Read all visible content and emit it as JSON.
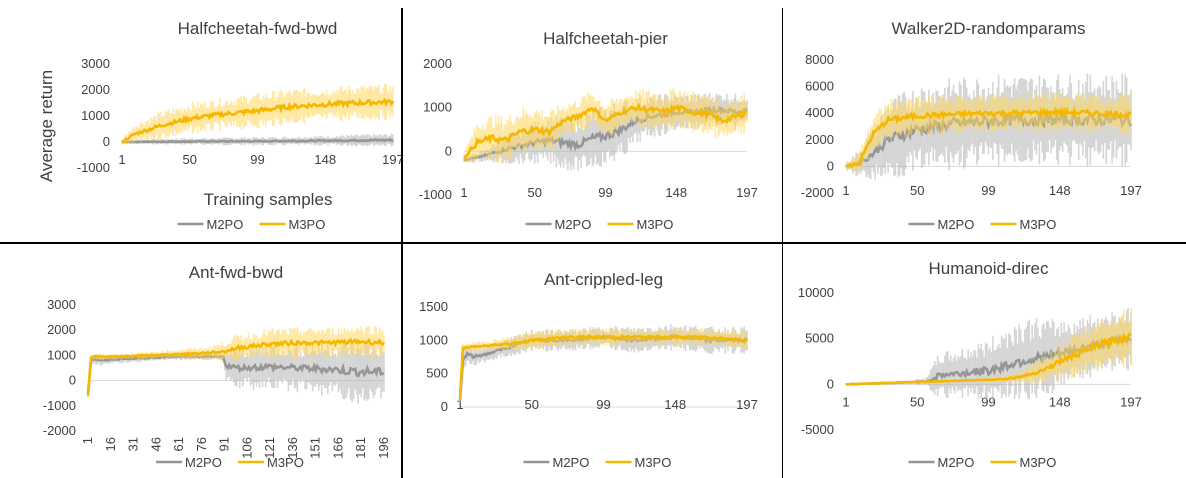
{
  "figure": {
    "colors": {
      "M2PO": "#969696",
      "M3PO": "#f5b800",
      "M2PO_band": "#b4b4b4",
      "M3PO_band": "#ffd75a"
    },
    "legend": [
      "M2PO",
      "M3PO"
    ]
  },
  "chart_data": [
    {
      "type": "line",
      "title": "Halfcheetah-fwd-bwd",
      "ylabel": "Average return",
      "xlabel": "Training samples",
      "ylim": [
        -1000,
        3000
      ],
      "yticks": [
        -1000,
        0,
        1000,
        2000,
        3000
      ],
      "xlim": [
        1,
        197
      ],
      "xticks": [
        "1",
        "50",
        "99",
        "148",
        "197"
      ],
      "series": [
        {
          "name": "M2PO",
          "x": [
            1,
            20,
            50,
            99,
            148,
            197
          ],
          "y": [
            0,
            10,
            20,
            30,
            50,
            80
          ],
          "band": [
            60,
            80,
            100,
            120,
            150,
            180
          ]
        },
        {
          "name": "M3PO",
          "x": [
            1,
            10,
            30,
            50,
            70,
            99,
            120,
            148,
            170,
            197
          ],
          "y": [
            0,
            300,
            650,
            900,
            1050,
            1200,
            1350,
            1450,
            1500,
            1550
          ],
          "band": [
            100,
            300,
            400,
            450,
            450,
            500,
            500,
            500,
            500,
            500
          ]
        }
      ]
    },
    {
      "type": "line",
      "title": "Halfcheetah-pier",
      "ylim": [
        -1000,
        2000
      ],
      "yticks": [
        -1000,
        0,
        1000,
        2000
      ],
      "xlim": [
        1,
        197
      ],
      "xticks": [
        "1",
        "50",
        "99",
        "148",
        "197"
      ],
      "series": [
        {
          "name": "M2PO",
          "x": [
            1,
            15,
            30,
            50,
            60,
            70,
            80,
            90,
            99,
            110,
            120,
            130,
            140,
            148,
            160,
            170,
            180,
            190,
            197
          ],
          "y": [
            -200,
            -100,
            50,
            200,
            250,
            200,
            150,
            300,
            350,
            500,
            700,
            800,
            850,
            900,
            900,
            950,
            950,
            900,
            950
          ],
          "band": [
            50,
            100,
            250,
            350,
            400,
            450,
            450,
            500,
            500,
            500,
            400,
            350,
            350,
            300,
            300,
            300,
            300,
            300,
            300
          ]
        },
        {
          "name": "M3PO",
          "x": [
            1,
            10,
            20,
            30,
            40,
            50,
            60,
            70,
            80,
            90,
            99,
            110,
            120,
            130,
            140,
            148,
            160,
            170,
            180,
            190,
            197
          ],
          "y": [
            -150,
            200,
            300,
            250,
            450,
            500,
            450,
            700,
            800,
            1000,
            700,
            900,
            1000,
            950,
            900,
            1000,
            900,
            850,
            700,
            800,
            900
          ],
          "band": [
            100,
            350,
            400,
            400,
            400,
            400,
            350,
            300,
            300,
            300,
            300,
            300,
            300,
            350,
            350,
            350,
            350,
            350,
            350,
            350,
            350
          ]
        }
      ]
    },
    {
      "type": "line",
      "title": "Walker2D-randomparams",
      "ylim": [
        -2000,
        8000
      ],
      "yticks": [
        -2000,
        0,
        2000,
        4000,
        6000,
        8000
      ],
      "xlim": [
        1,
        197
      ],
      "xticks": [
        "1",
        "50",
        "99",
        "148",
        "197"
      ],
      "series": [
        {
          "name": "M2PO",
          "x": [
            1,
            10,
            20,
            30,
            50,
            75,
            99,
            120,
            148,
            170,
            197
          ],
          "y": [
            0,
            200,
            1000,
            2000,
            2800,
            3200,
            3400,
            3500,
            3500,
            3500,
            3500
          ],
          "band": [
            200,
            800,
            1500,
            2200,
            2400,
            2500,
            2500,
            2500,
            2500,
            2500,
            2500
          ]
        },
        {
          "name": "M3PO",
          "x": [
            1,
            10,
            20,
            30,
            50,
            75,
            99,
            120,
            148,
            170,
            197
          ],
          "y": [
            0,
            300,
            2500,
            3500,
            3800,
            3900,
            4000,
            4000,
            4100,
            4000,
            3900
          ],
          "band": [
            200,
            600,
            1000,
            1100,
            1100,
            1100,
            1100,
            1100,
            1100,
            1100,
            1100
          ]
        }
      ]
    },
    {
      "type": "line",
      "title": "Ant-fwd-bwd",
      "ylim": [
        -2000,
        3000
      ],
      "yticks": [
        -2000,
        -1000,
        0,
        1000,
        2000,
        3000
      ],
      "xlim": [
        1,
        196
      ],
      "xticks": [
        "1",
        "16",
        "31",
        "46",
        "61",
        "76",
        "91",
        "106",
        "121",
        "136",
        "151",
        "166",
        "181",
        "196"
      ],
      "x_tick_rotation": -90,
      "series": [
        {
          "name": "M2PO",
          "x": [
            1,
            3,
            5,
            10,
            20,
            40,
            60,
            80,
            90,
            92,
            100,
            120,
            140,
            160,
            180,
            196
          ],
          "y": [
            -500,
            800,
            850,
            800,
            850,
            900,
            950,
            950,
            950,
            600,
            500,
            550,
            500,
            450,
            350,
            350
          ],
          "band": [
            100,
            150,
            150,
            150,
            150,
            100,
            100,
            100,
            100,
            500,
            600,
            700,
            700,
            800,
            1000,
            800
          ]
        },
        {
          "name": "M3PO",
          "x": [
            1,
            3,
            5,
            10,
            20,
            40,
            60,
            80,
            90,
            100,
            120,
            140,
            160,
            180,
            196
          ],
          "y": [
            -600,
            900,
            950,
            950,
            950,
            1000,
            1050,
            1100,
            1150,
            1300,
            1450,
            1500,
            1500,
            1550,
            1500
          ],
          "band": [
            100,
            100,
            100,
            100,
            100,
            100,
            150,
            200,
            300,
            400,
            450,
            450,
            450,
            500,
            500
          ]
        }
      ]
    },
    {
      "type": "line",
      "title": "Ant-crippled-leg",
      "ylim": [
        0,
        1500
      ],
      "yticks": [
        0,
        500,
        1000,
        1500
      ],
      "xlim": [
        1,
        197
      ],
      "xticks": [
        "1",
        "50",
        "99",
        "148",
        "197"
      ],
      "series": [
        {
          "name": "M2PO",
          "x": [
            1,
            3,
            6,
            10,
            20,
            35,
            50,
            75,
            99,
            120,
            148,
            170,
            197
          ],
          "y": [
            100,
            700,
            800,
            750,
            800,
            900,
            1000,
            1000,
            1050,
            1000,
            1050,
            1000,
            1000
          ],
          "band": [
            50,
            100,
            100,
            100,
            100,
            100,
            120,
            120,
            120,
            150,
            150,
            150,
            150
          ]
        },
        {
          "name": "M3PO",
          "x": [
            1,
            3,
            6,
            10,
            20,
            35,
            50,
            75,
            99,
            120,
            148,
            170,
            197
          ],
          "y": [
            150,
            880,
            900,
            900,
            920,
            950,
            1000,
            1050,
            1050,
            1050,
            1050,
            1050,
            1000
          ],
          "band": [
            50,
            60,
            60,
            60,
            60,
            80,
            100,
            100,
            100,
            100,
            100,
            100,
            100
          ]
        }
      ]
    },
    {
      "type": "line",
      "title": "Humanoid-direc",
      "ylim": [
        -5000,
        10000
      ],
      "yticks": [
        -5000,
        0,
        5000,
        10000
      ],
      "xlim": [
        1,
        197
      ],
      "xticks": [
        "1",
        "50",
        "99",
        "148",
        "197"
      ],
      "series": [
        {
          "name": "M2PO",
          "x": [
            1,
            20,
            40,
            55,
            60,
            65,
            80,
            99,
            110,
            120,
            130,
            140,
            148,
            160,
            170,
            180,
            197
          ],
          "y": [
            0,
            100,
            200,
            300,
            500,
            1000,
            1200,
            1500,
            2000,
            2500,
            2800,
            3000,
            3300,
            3800,
            4200,
            4600,
            5000
          ],
          "band": [
            100,
            100,
            100,
            300,
            1000,
            1800,
            2000,
            2500,
            3000,
            3300,
            3300,
            3000,
            2800,
            2600,
            2500,
            2500,
            2500
          ]
        },
        {
          "name": "M3PO",
          "x": [
            1,
            20,
            40,
            60,
            80,
            99,
            110,
            120,
            130,
            140,
            148,
            160,
            170,
            180,
            197
          ],
          "y": [
            0,
            100,
            200,
            300,
            400,
            500,
            600,
            800,
            1200,
            1800,
            2500,
            3300,
            4000,
            4600,
            5200
          ],
          "band": [
            50,
            50,
            50,
            100,
            100,
            200,
            300,
            500,
            800,
            1200,
            1500,
            1800,
            2000,
            2200,
            2300
          ]
        }
      ]
    }
  ]
}
